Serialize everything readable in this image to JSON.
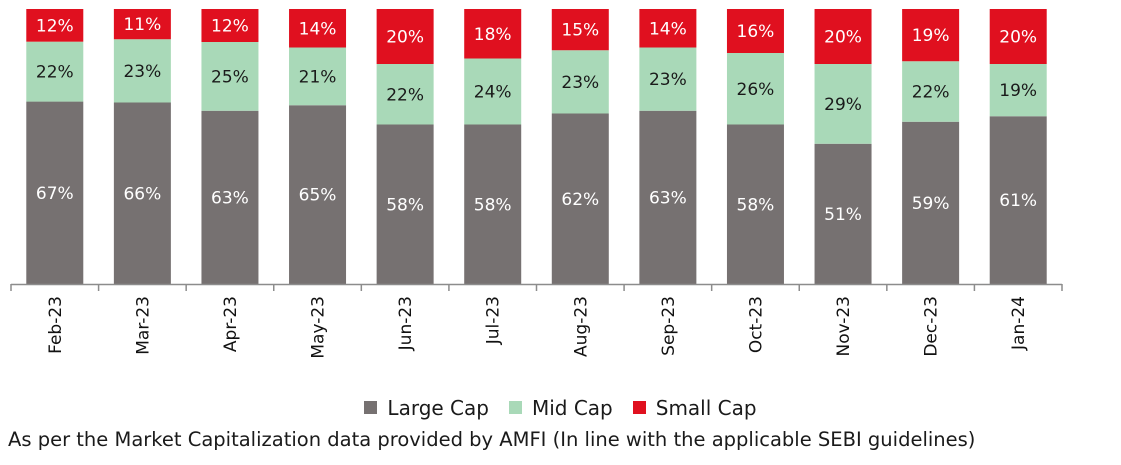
{
  "chart_data": {
    "type": "bar",
    "stacked": true,
    "unit": "%",
    "categories": [
      "Feb-23",
      "Mar-23",
      "Apr-23",
      "May-23",
      "Jun-23",
      "Jul-23",
      "Aug-23",
      "Sep-23",
      "Oct-23",
      "Nov-23",
      "Dec-23",
      "Jan-24"
    ],
    "series": [
      {
        "name": "Large Cap",
        "color": "#767171",
        "label_color": "#ffffff",
        "values": [
          67,
          66,
          63,
          65,
          58,
          58,
          62,
          63,
          58,
          51,
          59,
          61
        ]
      },
      {
        "name": "Mid Cap",
        "color": "#a9d9b8",
        "label_color": "#1a1a1a",
        "values": [
          22,
          23,
          25,
          21,
          22,
          24,
          23,
          23,
          26,
          29,
          22,
          19
        ]
      },
      {
        "name": "Small Cap",
        "color": "#e0101f",
        "label_color": "#ffffff",
        "values": [
          12,
          11,
          12,
          14,
          20,
          18,
          15,
          14,
          16,
          20,
          19,
          20
        ]
      }
    ],
    "legend_position": "bottom",
    "grid": false
  },
  "footnote": "As per the Market Capitalization data provided by AMFI (In line with the applicable SEBI guidelines)"
}
